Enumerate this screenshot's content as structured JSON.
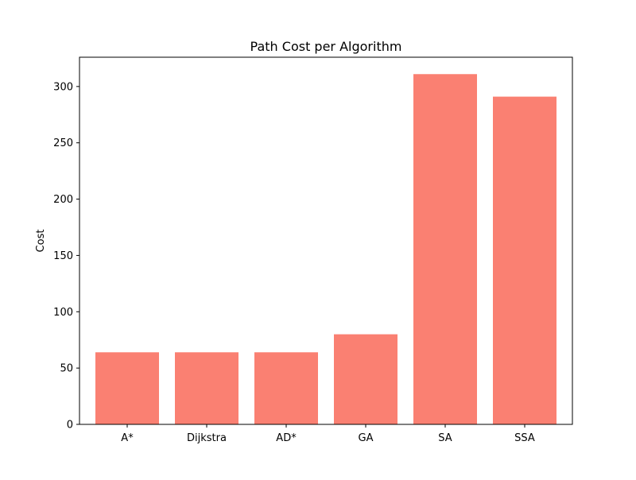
{
  "chart_data": {
    "type": "bar",
    "title": "Path Cost per Algorithm",
    "xlabel": "",
    "ylabel": "Cost",
    "categories": [
      "A*",
      "Dijkstra",
      "AD*",
      "GA",
      "SA",
      "SSA"
    ],
    "values": [
      64,
      64,
      64,
      80,
      311,
      291
    ],
    "ylim": [
      0,
      326
    ],
    "yticks": [
      0,
      50,
      100,
      150,
      200,
      250,
      300
    ],
    "bar_color": "#fa8072",
    "grid": false,
    "legend": "none"
  }
}
